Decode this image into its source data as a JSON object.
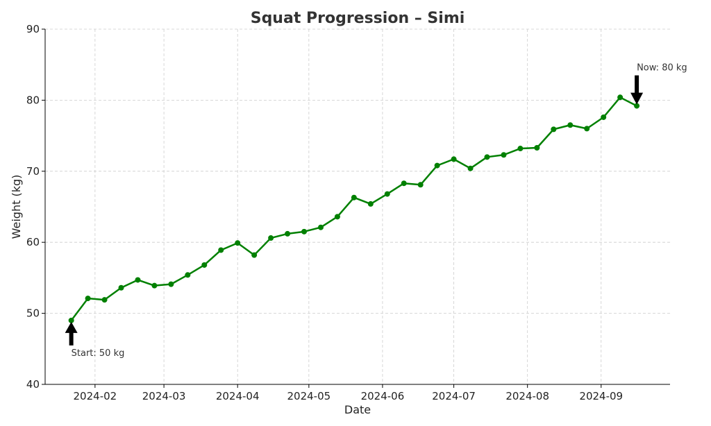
{
  "chart_data": {
    "type": "line",
    "title": "Squat Progression – Simi",
    "xlabel": "Date",
    "ylabel": "Weight (kg)",
    "ylim": [
      40,
      90
    ],
    "yticks": [
      40,
      50,
      60,
      70,
      80,
      90
    ],
    "xticks": [
      "2024-02",
      "2024-03",
      "2024-04",
      "2024-05",
      "2024-06",
      "2024-07",
      "2024-08",
      "2024-09"
    ],
    "xlim": [
      "2024-01-11",
      "2024-09-30"
    ],
    "grid": true,
    "series": [
      {
        "color": "#008000",
        "x": [
          "2024-01-22",
          "2024-01-29",
          "2024-02-05",
          "2024-02-12",
          "2024-02-19",
          "2024-02-26",
          "2024-03-04",
          "2024-03-11",
          "2024-03-18",
          "2024-03-25",
          "2024-04-01",
          "2024-04-08",
          "2024-04-15",
          "2024-04-22",
          "2024-04-29",
          "2024-05-06",
          "2024-05-13",
          "2024-05-20",
          "2024-05-27",
          "2024-06-03",
          "2024-06-10",
          "2024-06-17",
          "2024-06-24",
          "2024-07-01",
          "2024-07-08",
          "2024-07-15",
          "2024-07-22",
          "2024-07-29",
          "2024-08-05",
          "2024-08-12",
          "2024-08-19",
          "2024-08-26",
          "2024-09-02",
          "2024-09-09",
          "2024-09-16"
        ],
        "y": [
          49.0,
          52.1,
          51.9,
          53.6,
          54.7,
          53.9,
          54.1,
          55.4,
          56.8,
          58.9,
          59.9,
          58.2,
          60.6,
          61.2,
          61.5,
          62.1,
          63.6,
          66.3,
          65.4,
          66.8,
          68.3,
          68.1,
          70.8,
          71.7,
          70.4,
          72.0,
          72.3,
          73.2,
          73.3,
          75.9,
          76.5,
          76.0,
          77.6,
          80.4,
          79.2
        ]
      }
    ],
    "annotations": [
      {
        "text": "Start: 50 kg",
        "x": "2024-01-22",
        "y": 49.0,
        "arrow": "up"
      },
      {
        "text": "Now: 80 kg",
        "x": "2024-09-16",
        "y": 79.2,
        "arrow": "down"
      }
    ]
  }
}
